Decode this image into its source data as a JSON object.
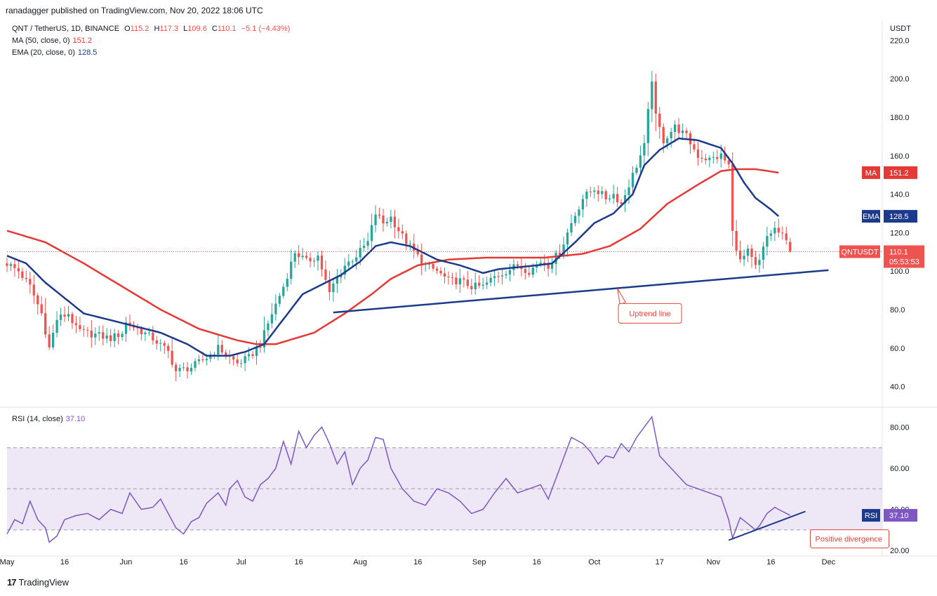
{
  "header": {
    "published": "ranadagger published on TradingView.com, Nov 20, 2022 18:06 UTC"
  },
  "legend": {
    "symbol": "QNT / TetherUS, 1D, BINANCE",
    "o_label": "O",
    "o": "115.2",
    "h_label": "H",
    "h": "117.3",
    "l_label": "L",
    "l": "109.6",
    "c_label": "C",
    "c": "110.1",
    "change": "−5.1 (−4.43%)",
    "ma_label": "MA (50, close, 0)",
    "ma_value": "151.2",
    "ema_label": "EMA (20, close, 0)",
    "ema_value": "128.5",
    "rsi_label": "RSI (14, close)",
    "rsi_value": "37.10"
  },
  "colors": {
    "up": "#26a69a",
    "down": "#ef5350",
    "ma": "#e53935",
    "ema": "#1c3a8c",
    "rsi": "#7e57c2",
    "rsi_band": "#ede7f6",
    "trend": "#1c3a8c",
    "callout": "#e0453a"
  },
  "chart_data": [
    {
      "type": "candlestick",
      "symbol": "QNTUSDT",
      "unit": "USDT",
      "ylim": [
        30,
        230
      ],
      "y_ticks": [
        "40.0",
        "60.0",
        "80.0",
        "100.0",
        "120.0",
        "140.0",
        "160.0",
        "180.0",
        "200.0",
        "220.0"
      ],
      "x_ticks": [
        "May",
        "16",
        "Jun",
        "16",
        "Jul",
        "16",
        "Aug",
        "16",
        "Sep",
        "16",
        "Oct",
        "17",
        "Nov",
        "16",
        "Dec"
      ],
      "x_tick_days": [
        0,
        15,
        31,
        46,
        61,
        76,
        92,
        107,
        123,
        138,
        153,
        170,
        184,
        199,
        214
      ],
      "start_date": "2022-05-01",
      "close_anchors": [
        [
          0,
          104
        ],
        [
          3,
          100
        ],
        [
          6,
          92
        ],
        [
          9,
          78
        ],
        [
          11,
          60
        ],
        [
          13,
          75
        ],
        [
          16,
          78
        ],
        [
          18,
          70
        ],
        [
          20,
          68
        ],
        [
          23,
          67
        ],
        [
          27,
          65
        ],
        [
          30,
          68
        ],
        [
          31,
          73
        ],
        [
          34,
          70
        ],
        [
          38,
          65
        ],
        [
          42,
          58
        ],
        [
          44,
          48
        ],
        [
          48,
          50
        ],
        [
          52,
          55
        ],
        [
          55,
          60
        ],
        [
          57,
          57
        ],
        [
          60,
          52
        ],
        [
          63,
          55
        ],
        [
          66,
          62
        ],
        [
          69,
          78
        ],
        [
          72,
          92
        ],
        [
          75,
          110
        ],
        [
          78,
          105
        ],
        [
          81,
          108
        ],
        [
          84,
          88
        ],
        [
          85,
          93
        ],
        [
          88,
          103
        ],
        [
          91,
          108
        ],
        [
          94,
          115
        ],
        [
          96,
          130
        ],
        [
          98,
          125
        ],
        [
          100,
          128
        ],
        [
          103,
          118
        ],
        [
          106,
          110
        ],
        [
          109,
          103
        ],
        [
          112,
          100
        ],
        [
          115,
          95
        ],
        [
          118,
          95
        ],
        [
          121,
          92
        ],
        [
          124,
          92
        ],
        [
          127,
          97
        ],
        [
          130,
          100
        ],
        [
          133,
          103
        ],
        [
          136,
          100
        ],
        [
          139,
          105
        ],
        [
          141,
          103
        ],
        [
          144,
          110
        ],
        [
          147,
          125
        ],
        [
          150,
          138
        ],
        [
          153,
          143
        ],
        [
          156,
          138
        ],
        [
          158,
          140
        ],
        [
          160,
          135
        ],
        [
          163,
          150
        ],
        [
          166,
          165
        ],
        [
          168,
          200
        ],
        [
          169,
          180
        ],
        [
          171,
          168
        ],
        [
          174,
          175
        ],
        [
          177,
          170
        ],
        [
          180,
          160
        ],
        [
          183,
          158
        ],
        [
          186,
          160
        ],
        [
          188,
          155
        ],
        [
          189,
          120
        ],
        [
          191,
          105
        ],
        [
          193,
          110
        ],
        [
          195,
          102
        ],
        [
          196,
          105
        ],
        [
          198,
          118
        ],
        [
          200,
          122
        ],
        [
          201,
          120
        ],
        [
          202,
          118
        ],
        [
          203,
          115.2
        ],
        [
          204,
          110.1
        ]
      ],
      "last_candle": {
        "open": 115.2,
        "high": 117.3,
        "low": 109.6,
        "close": 110.1
      },
      "ma50": {
        "name": "MA (50, close, 0)",
        "last": 151.2,
        "anchors": [
          [
            0,
            121
          ],
          [
            10,
            115
          ],
          [
            20,
            104
          ],
          [
            30,
            92
          ],
          [
            40,
            80
          ],
          [
            50,
            70
          ],
          [
            60,
            64
          ],
          [
            65,
            62
          ],
          [
            70,
            62
          ],
          [
            80,
            68
          ],
          [
            88,
            78
          ],
          [
            95,
            88
          ],
          [
            100,
            96
          ],
          [
            107,
            103
          ],
          [
            115,
            106
          ],
          [
            125,
            107
          ],
          [
            140,
            107
          ],
          [
            150,
            109
          ],
          [
            157,
            113
          ],
          [
            165,
            122
          ],
          [
            172,
            135
          ],
          [
            180,
            145
          ],
          [
            186,
            152
          ],
          [
            190,
            153
          ],
          [
            195,
            153
          ],
          [
            201,
            151.2
          ]
        ]
      },
      "ema20": {
        "name": "EMA (20, close, 0)",
        "last": 128.5,
        "anchors": [
          [
            0,
            108
          ],
          [
            5,
            104
          ],
          [
            10,
            94
          ],
          [
            20,
            78
          ],
          [
            30,
            73
          ],
          [
            40,
            68
          ],
          [
            47,
            62
          ],
          [
            52,
            56
          ],
          [
            58,
            56
          ],
          [
            62,
            58
          ],
          [
            67,
            62
          ],
          [
            72,
            75
          ],
          [
            77,
            88
          ],
          [
            82,
            93
          ],
          [
            87,
            98
          ],
          [
            92,
            105
          ],
          [
            96,
            113
          ],
          [
            100,
            115
          ],
          [
            105,
            113
          ],
          [
            112,
            106
          ],
          [
            118,
            103
          ],
          [
            124,
            99
          ],
          [
            128,
            101
          ],
          [
            133,
            102
          ],
          [
            138,
            103
          ],
          [
            142,
            104
          ],
          [
            148,
            115
          ],
          [
            153,
            125
          ],
          [
            158,
            130
          ],
          [
            163,
            140
          ],
          [
            166,
            155
          ],
          [
            170,
            163
          ],
          [
            175,
            169
          ],
          [
            180,
            168
          ],
          [
            186,
            164
          ],
          [
            189,
            156
          ],
          [
            192,
            146
          ],
          [
            195,
            138
          ],
          [
            199,
            132
          ],
          [
            201,
            128.5
          ]
        ]
      },
      "trend_line": {
        "name": "Uptrend line",
        "from": [
          85,
          78.5
        ],
        "to": [
          214,
          100.5
        ]
      }
    },
    {
      "type": "line",
      "name": "RSI (14, close)",
      "ylim": [
        18,
        88
      ],
      "y_ticks": [
        "20.00",
        "40.00",
        "60.00",
        "80.00"
      ],
      "bands": [
        30,
        50,
        70
      ],
      "last": 37.1,
      "anchors": [
        [
          0,
          28
        ],
        [
          2,
          35
        ],
        [
          4,
          33
        ],
        [
          6,
          44
        ],
        [
          8,
          35
        ],
        [
          10,
          31
        ],
        [
          11,
          24
        ],
        [
          13,
          27
        ],
        [
          15,
          35
        ],
        [
          18,
          37
        ],
        [
          21,
          38
        ],
        [
          24,
          35
        ],
        [
          27,
          40
        ],
        [
          30,
          38
        ],
        [
          32,
          48
        ],
        [
          35,
          40
        ],
        [
          38,
          41
        ],
        [
          40,
          45
        ],
        [
          42,
          38
        ],
        [
          44,
          31
        ],
        [
          46,
          28
        ],
        [
          48,
          34
        ],
        [
          50,
          36
        ],
        [
          52,
          43
        ],
        [
          55,
          48
        ],
        [
          57,
          42
        ],
        [
          58,
          50
        ],
        [
          60,
          54
        ],
        [
          62,
          46
        ],
        [
          64,
          44
        ],
        [
          66,
          52
        ],
        [
          68,
          55
        ],
        [
          70,
          60
        ],
        [
          72,
          73
        ],
        [
          74,
          62
        ],
        [
          76,
          78
        ],
        [
          78,
          70
        ],
        [
          80,
          76
        ],
        [
          82,
          80
        ],
        [
          84,
          72
        ],
        [
          86,
          62
        ],
        [
          88,
          68
        ],
        [
          90,
          52
        ],
        [
          92,
          60
        ],
        [
          94,
          64
        ],
        [
          96,
          75
        ],
        [
          98,
          74
        ],
        [
          100,
          60
        ],
        [
          103,
          50
        ],
        [
          106,
          44
        ],
        [
          109,
          42
        ],
        [
          112,
          50
        ],
        [
          115,
          48
        ],
        [
          118,
          44
        ],
        [
          121,
          38
        ],
        [
          124,
          40
        ],
        [
          127,
          48
        ],
        [
          130,
          55
        ],
        [
          133,
          48
        ],
        [
          136,
          50
        ],
        [
          139,
          52
        ],
        [
          141,
          45
        ],
        [
          144,
          60
        ],
        [
          147,
          75
        ],
        [
          150,
          72
        ],
        [
          152,
          68
        ],
        [
          154,
          62
        ],
        [
          156,
          66
        ],
        [
          158,
          65
        ],
        [
          160,
          72
        ],
        [
          162,
          68
        ],
        [
          164,
          75
        ],
        [
          166,
          80
        ],
        [
          168,
          85
        ],
        [
          170,
          66
        ],
        [
          172,
          62
        ],
        [
          174,
          58
        ],
        [
          177,
          52
        ],
        [
          180,
          50
        ],
        [
          183,
          48
        ],
        [
          186,
          46
        ],
        [
          188,
          35
        ],
        [
          189,
          26
        ],
        [
          191,
          36
        ],
        [
          193,
          33
        ],
        [
          195,
          30
        ],
        [
          196,
          32
        ],
        [
          198,
          38
        ],
        [
          200,
          41
        ],
        [
          202,
          39
        ],
        [
          204,
          37.1
        ]
      ],
      "divergence_line": {
        "name": "Positive divergence",
        "from": [
          188,
          25
        ],
        "to": [
          208,
          39
        ]
      }
    }
  ],
  "price_badges": {
    "ma": {
      "label": "MA",
      "value": "151.2"
    },
    "ema": {
      "label": "EMA",
      "value": "128.5"
    },
    "last": {
      "label": "QNTUSDT",
      "value": "110.1",
      "countdown": "05:53:53"
    },
    "rsi": {
      "label": "RSI",
      "value": "37.10"
    }
  },
  "annotations": {
    "uptrend": "Uptrend line",
    "divergence": "Positive divergence"
  },
  "axis_unit": "USDT",
  "footer": {
    "brand": "TradingView",
    "logo_mark": "17"
  }
}
